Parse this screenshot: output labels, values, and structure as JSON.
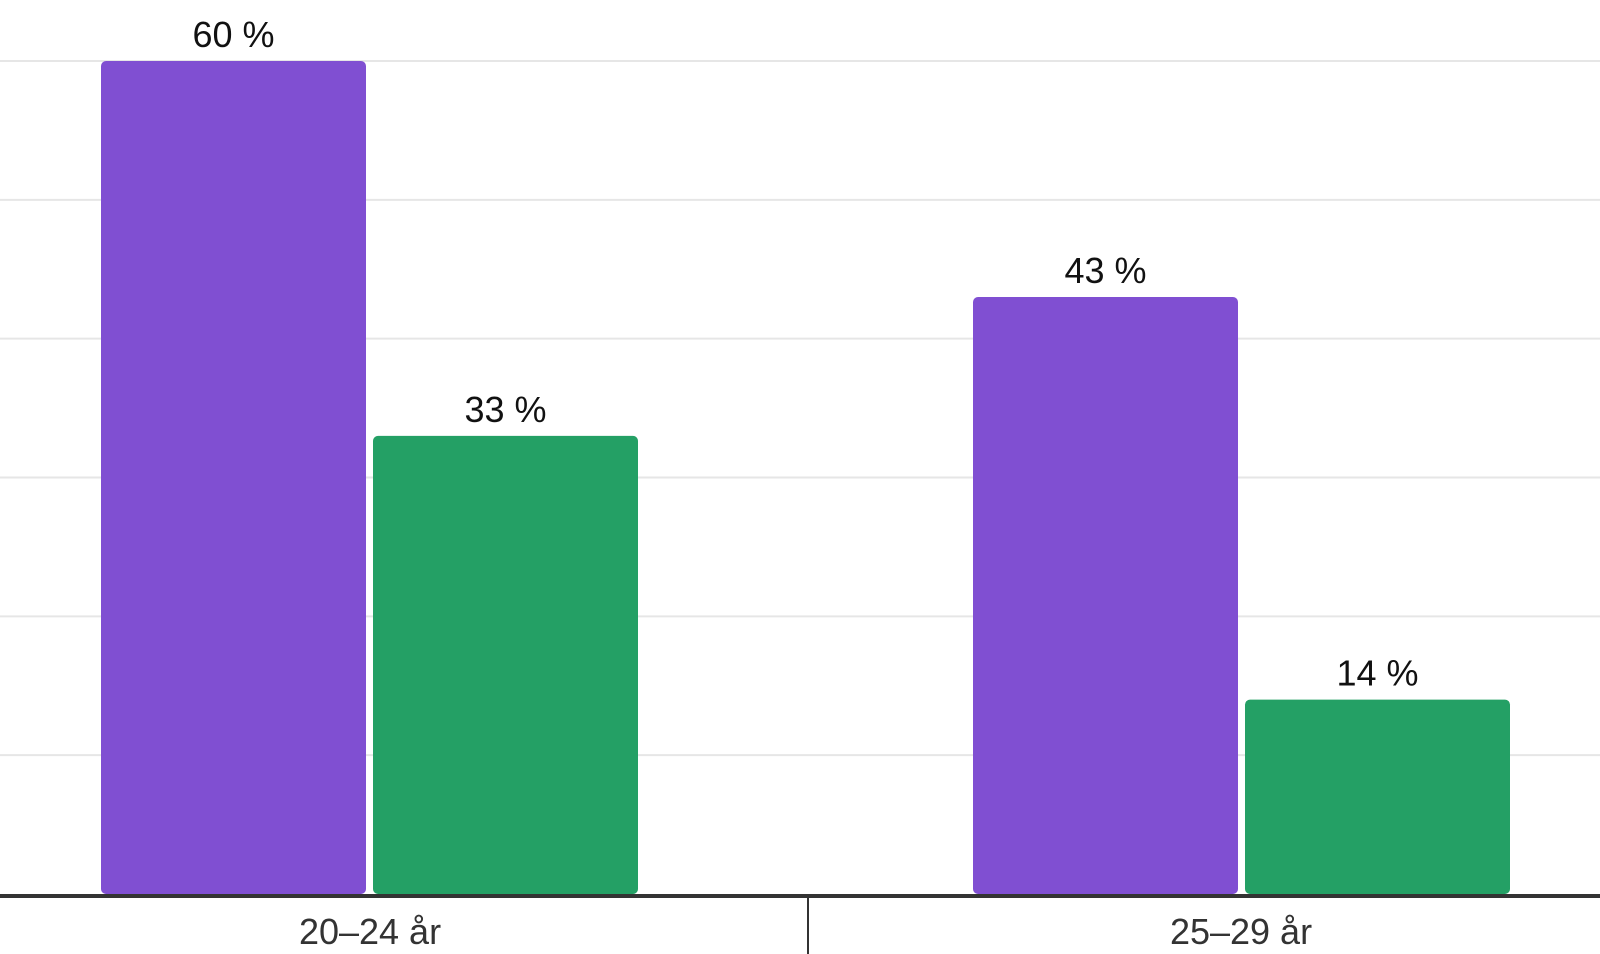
{
  "chart_data": {
    "type": "bar",
    "categories": [
      "20–24 år",
      "25–29 år"
    ],
    "series": [
      {
        "values": [
          60,
          43
        ],
        "labels": [
          "60 %",
          "43 %"
        ],
        "color": "#804fd2"
      },
      {
        "values": [
          33,
          14
        ],
        "labels": [
          "33 %",
          "14 %"
        ],
        "color": "#24a065"
      }
    ],
    "title": "",
    "xlabel": "",
    "ylabel": "",
    "ylim": [
      0,
      60
    ],
    "y_gridlines": [
      10,
      20,
      30,
      40,
      50,
      60
    ],
    "grid": true,
    "legend": "none"
  }
}
